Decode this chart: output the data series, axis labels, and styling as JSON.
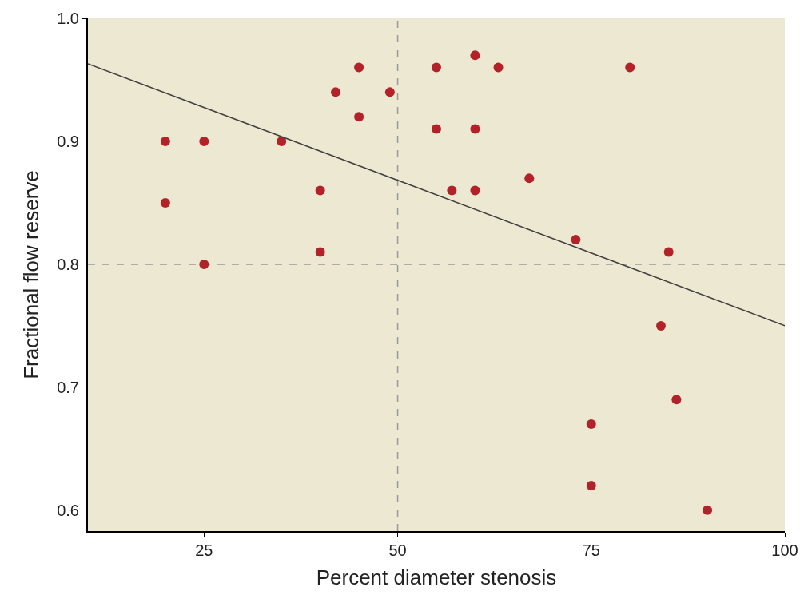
{
  "chart_data": {
    "type": "scatter",
    "xlabel": "Percent diameter stenosis",
    "ylabel": "Fractional flow reserve",
    "xlim": [
      10,
      100
    ],
    "xticks": [
      25,
      50,
      75,
      100
    ],
    "ylim": [
      0.583,
      1.0
    ],
    "yticks": [
      0.6,
      0.7,
      0.8,
      0.9,
      {
        "value": 1.0,
        "label": "1.0"
      }
    ],
    "grid": false,
    "legend": false,
    "series": [
      {
        "marker": "circle",
        "color": "#b22228",
        "x": [
          20,
          20,
          25,
          25,
          35,
          40,
          40,
          42,
          45,
          45,
          49,
          55,
          55,
          57,
          60,
          60,
          60,
          63,
          67,
          73,
          80,
          85,
          84,
          86,
          75,
          75,
          90
        ],
        "values": [
          0.9,
          0.85,
          0.9,
          0.8,
          0.9,
          0.86,
          0.81,
          0.94,
          0.96,
          0.92,
          0.94,
          0.96,
          0.91,
          0.86,
          0.97,
          0.91,
          0.86,
          0.96,
          0.87,
          0.82,
          0.96,
          0.81,
          0.75,
          0.69,
          0.67,
          0.62,
          0.6
        ]
      },
      {
        "type": "line",
        "color": "#404040",
        "x": [
          10,
          100
        ],
        "values": [
          0.963,
          0.75
        ],
        "line_style": "solid",
        "marker": "none"
      }
    ],
    "ref_lines": [
      {
        "axis": "x",
        "value": 50,
        "color": "#999999",
        "line_style": "dashed"
      },
      {
        "axis": "y",
        "value": 0.8,
        "color": "#999999",
        "line_style": "dashed"
      }
    ]
  }
}
